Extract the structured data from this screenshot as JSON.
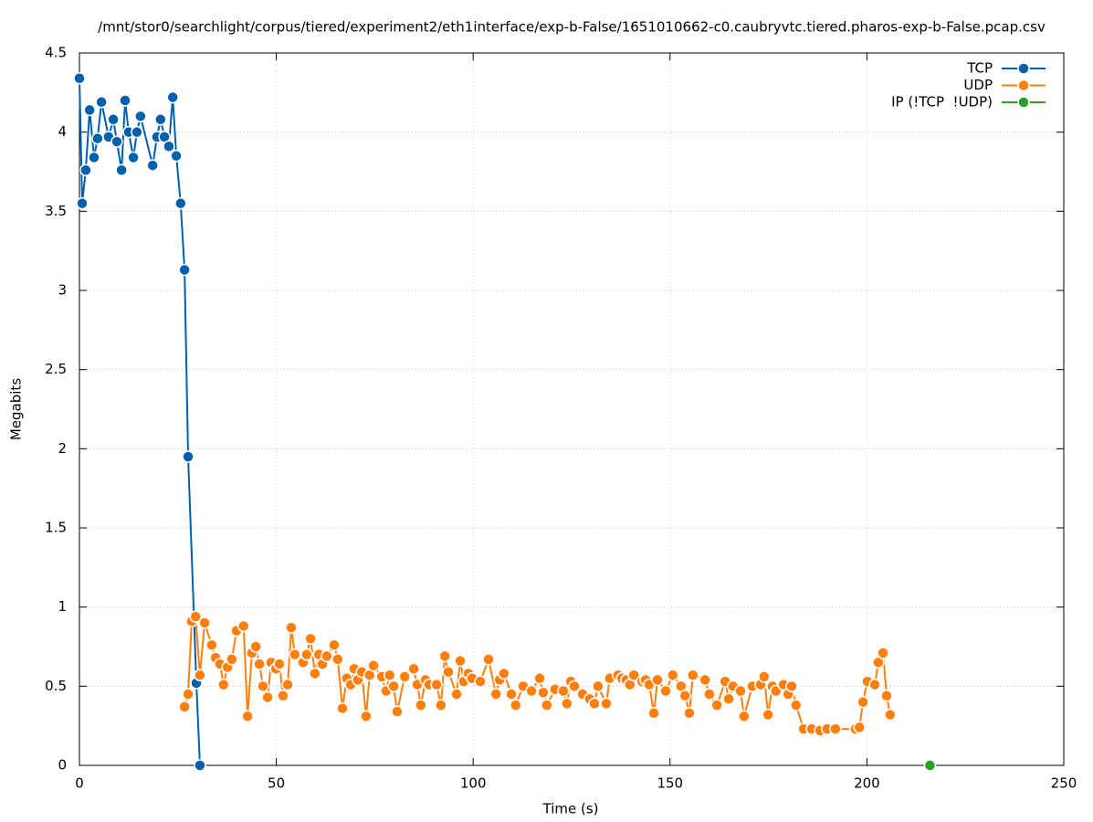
{
  "chart_data": {
    "type": "line",
    "title": "/mnt/stor0/searchlight/corpus/tiered/experiment2/eth1interface/exp-b-False/1651010662-c0.caubryvtc.tiered.pharos-exp-b-False.pcap.csv",
    "x_label": "Time (s)",
    "y_label": "Megabits",
    "xlim": [
      0,
      250
    ],
    "xticks": [
      0,
      50,
      100,
      150,
      200,
      250
    ],
    "ylim": [
      0,
      4.5
    ],
    "yticks": [
      0,
      0.5,
      1,
      1.5,
      2,
      2.5,
      3,
      3.5,
      4,
      4.5
    ],
    "grid": true,
    "legend": "top-right",
    "series": [
      {
        "name": "TCP",
        "color": "#0060ad",
        "x": [
          0,
          0.7,
          1.6,
          2.6,
          3.7,
          4.6,
          5.6,
          7.4,
          8.6,
          9.5,
          10.7,
          11.6,
          12.5,
          13.7,
          14.6,
          15.5,
          18.6,
          19.7,
          20.6,
          21.6,
          22.7,
          23.7,
          24.6,
          25.7,
          26.7,
          27.6,
          29.7,
          30.6
        ],
        "values": [
          4.34,
          3.55,
          3.76,
          4.14,
          3.84,
          3.96,
          4.19,
          3.97,
          4.08,
          3.94,
          3.76,
          4.2,
          4.0,
          3.84,
          4.0,
          4.1,
          3.79,
          3.97,
          4.08,
          3.97,
          3.91,
          4.22,
          3.85,
          3.55,
          3.13,
          1.95,
          0.52,
          0
        ]
      },
      {
        "name": "UDP",
        "color": "#ff7f0e",
        "x": [
          26.7,
          27.6,
          28.5,
          29.5,
          30.6,
          31.8,
          33.6,
          34.6,
          35.7,
          36.6,
          37.6,
          38.7,
          39.9,
          41.7,
          42.7,
          43.8,
          44.8,
          45.7,
          46.6,
          47.8,
          48.7,
          49.9,
          50.8,
          51.7,
          52.9,
          53.8,
          54.7,
          56.8,
          57.7,
          58.7,
          59.8,
          60.8,
          61.7,
          62.8,
          64.7,
          65.6,
          66.8,
          67.9,
          68.9,
          69.8,
          70.7,
          71.7,
          72.8,
          73.7,
          74.7,
          76.8,
          77.9,
          78.8,
          79.8,
          80.7,
          82.6,
          84.9,
          85.8,
          86.7,
          87.9,
          88.8,
          90.7,
          91.8,
          92.8,
          93.7,
          95.8,
          96.7,
          97.6,
          98.8,
          99.7,
          101.8,
          103.9,
          105.8,
          106.7,
          107.8,
          109.7,
          110.8,
          112.7,
          114.8,
          116.9,
          117.8,
          118.7,
          120.8,
          122.9,
          123.8,
          124.8,
          125.7,
          127.8,
          129.6,
          130.8,
          131.7,
          133.8,
          134.7,
          136.8,
          137.8,
          138.9,
          139.8,
          140.8,
          142.9,
          143.8,
          144.7,
          145.9,
          146.8,
          148.9,
          150.7,
          152.8,
          153.8,
          154.9,
          155.8,
          158.9,
          160,
          161.9,
          164,
          164.9,
          166,
          167.9,
          168.8,
          170.9,
          173,
          173.9,
          174.9,
          176,
          176.9,
          178.8,
          180,
          180.9,
          182,
          183.9,
          186,
          188.1,
          189.9,
          192,
          197.1,
          198.1,
          199,
          200.1,
          202,
          202.9,
          204.1,
          205,
          205.9
        ],
        "values": [
          0.37,
          0.45,
          0.91,
          0.94,
          0.57,
          0.9,
          0.76,
          0.68,
          0.64,
          0.51,
          0.62,
          0.67,
          0.85,
          0.88,
          0.31,
          0.71,
          0.75,
          0.64,
          0.5,
          0.43,
          0.65,
          0.61,
          0.64,
          0.44,
          0.51,
          0.87,
          0.7,
          0.65,
          0.7,
          0.8,
          0.58,
          0.7,
          0.64,
          0.69,
          0.76,
          0.67,
          0.36,
          0.55,
          0.51,
          0.61,
          0.54,
          0.59,
          0.31,
          0.57,
          0.63,
          0.56,
          0.47,
          0.57,
          0.5,
          0.34,
          0.56,
          0.61,
          0.51,
          0.38,
          0.54,
          0.51,
          0.51,
          0.38,
          0.69,
          0.59,
          0.45,
          0.66,
          0.53,
          0.58,
          0.55,
          0.53,
          0.67,
          0.45,
          0.54,
          0.58,
          0.45,
          0.38,
          0.5,
          0.47,
          0.55,
          0.46,
          0.38,
          0.48,
          0.47,
          0.39,
          0.53,
          0.5,
          0.45,
          0.42,
          0.39,
          0.5,
          0.39,
          0.55,
          0.57,
          0.55,
          0.54,
          0.51,
          0.57,
          0.53,
          0.54,
          0.51,
          0.33,
          0.54,
          0.47,
          0.57,
          0.5,
          0.44,
          0.33,
          0.57,
          0.54,
          0.45,
          0.38,
          0.53,
          0.42,
          0.5,
          0.47,
          0.31,
          0.5,
          0.51,
          0.56,
          0.32,
          0.5,
          0.47,
          0.51,
          0.45,
          0.5,
          0.38,
          0.23,
          0.23,
          0.22,
          0.23,
          0.23,
          0.23,
          0.24,
          0.4,
          0.53,
          0.51,
          0.65,
          0.71,
          0.44,
          0.32
        ]
      },
      {
        "name": "IP (!TCP  !UDP)",
        "color": "#2ca02c",
        "x": [
          216
        ],
        "values": [
          0
        ]
      }
    ]
  }
}
